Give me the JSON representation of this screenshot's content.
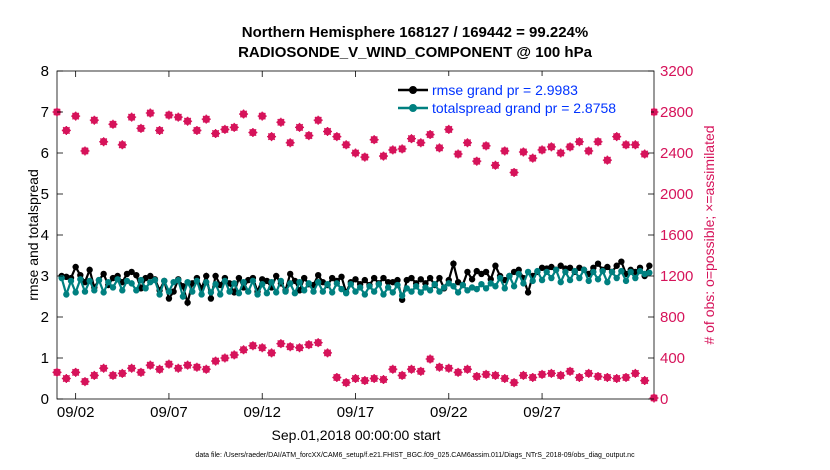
{
  "chart_data": {
    "type": "line",
    "title": "Northern Hemisphere 168127 / 169442 = 99.224%",
    "subtitle": "RADIOSONDE_V_WIND_COMPONENT @ 100 hPa",
    "xlabel": "Sep.01,2018 00:00:00 start",
    "ylabel": "rmse and totalspread",
    "y2label": "# of obs: o=possible; ×=assimilated",
    "x_range": [
      0.0,
      32.0
    ],
    "ylim": [
      0,
      8
    ],
    "y2lim": [
      0,
      3200
    ],
    "x_ticks": [
      1,
      6,
      11,
      16,
      21,
      26
    ],
    "x_tick_labels": [
      "09/02",
      "09/07",
      "09/12",
      "09/17",
      "09/22",
      "09/27"
    ],
    "y_ticks": [
      0,
      1,
      2,
      3,
      4,
      5,
      6,
      7,
      8
    ],
    "y2_ticks": [
      0,
      400,
      800,
      1200,
      1600,
      2000,
      2400,
      2800,
      3200
    ],
    "legend": [
      "rmse grand pr = 2.9983",
      "totalspread grand pr = 2.8758"
    ],
    "legend_position": "top-right",
    "colors": {
      "rmse": "#000000",
      "totalspread": "#008080",
      "obs": "#d6135a",
      "legend_text": "#0033ff"
    },
    "series": [
      {
        "name": "rmse",
        "axis": "left",
        "x": [
          0.25,
          0.5,
          0.75,
          1.0,
          1.25,
          1.5,
          1.75,
          2.0,
          2.25,
          2.5,
          2.75,
          3.0,
          3.25,
          3.5,
          3.75,
          4.0,
          4.25,
          4.5,
          4.75,
          5.0,
          5.25,
          5.5,
          5.75,
          6.0,
          6.25,
          6.5,
          6.75,
          7.0,
          7.25,
          7.5,
          7.75,
          8.0,
          8.25,
          8.5,
          8.75,
          9.0,
          9.25,
          9.5,
          9.75,
          10.0,
          10.25,
          10.5,
          10.75,
          11.0,
          11.25,
          11.5,
          11.75,
          12.0,
          12.25,
          12.5,
          12.75,
          13.0,
          13.25,
          13.5,
          13.75,
          14.0,
          14.25,
          14.5,
          14.75,
          15.0,
          15.25,
          15.5,
          15.75,
          16.0,
          16.25,
          16.5,
          16.75,
          17.0,
          17.25,
          17.5,
          17.75,
          18.0,
          18.25,
          18.5,
          18.75,
          19.0,
          19.25,
          19.5,
          19.75,
          20.0,
          20.25,
          20.5,
          20.75,
          21.0,
          21.25,
          21.5,
          21.75,
          22.0,
          22.25,
          22.5,
          22.75,
          23.0,
          23.25,
          23.5,
          23.75,
          24.0,
          24.25,
          24.5,
          24.75,
          25.0,
          25.25,
          25.5,
          25.75,
          26.0,
          26.25,
          26.5,
          26.75,
          27.0,
          27.25,
          27.5,
          27.75,
          28.0,
          28.25,
          28.5,
          28.75,
          29.0,
          29.25,
          29.5,
          29.75,
          30.0,
          30.25,
          30.5,
          30.75,
          31.0,
          31.25,
          31.5,
          31.75
        ],
        "y": [
          3.0,
          2.98,
          2.95,
          3.22,
          3.02,
          2.85,
          3.15,
          2.72,
          2.9,
          3.05,
          2.78,
          2.95,
          3.0,
          2.85,
          3.05,
          3.1,
          3.02,
          2.7,
          2.95,
          3.0,
          2.92,
          2.65,
          2.88,
          2.45,
          2.62,
          2.92,
          2.75,
          2.35,
          2.82,
          2.95,
          2.7,
          3.0,
          2.45,
          3.0,
          2.78,
          2.95,
          2.82,
          2.6,
          2.95,
          2.72,
          2.9,
          2.95,
          2.62,
          2.92,
          2.88,
          2.72,
          3.0,
          2.82,
          2.65,
          3.05,
          2.88,
          2.65,
          2.95,
          2.8,
          2.78,
          3.02,
          2.85,
          2.78,
          2.95,
          2.88,
          2.98,
          2.6,
          2.85,
          2.92,
          2.8,
          2.9,
          2.78,
          2.95,
          2.82,
          2.95,
          2.85,
          2.85,
          2.9,
          2.42,
          2.9,
          2.95,
          2.82,
          2.92,
          2.82,
          2.95,
          2.78,
          2.95,
          2.7,
          2.9,
          3.3,
          2.85,
          2.78,
          3.1,
          2.92,
          3.12,
          3.05,
          3.1,
          2.92,
          3.25,
          3.0,
          2.9,
          3.0,
          3.1,
          3.15,
          2.95,
          2.6,
          3.0,
          3.1,
          3.2,
          3.18,
          3.22,
          3.15,
          3.25,
          3.18,
          3.2,
          3.1,
          3.2,
          3.15,
          3.05,
          3.2,
          3.3,
          3.15,
          3.22,
          3.1,
          3.25,
          3.35,
          3.05,
          3.15,
          3.1,
          3.2,
          3.0,
          3.25
        ]
      },
      {
        "name": "totalspread",
        "axis": "left",
        "x": [
          0.25,
          0.5,
          0.75,
          1.0,
          1.25,
          1.5,
          1.75,
          2.0,
          2.25,
          2.5,
          2.75,
          3.0,
          3.25,
          3.5,
          3.75,
          4.0,
          4.25,
          4.5,
          4.75,
          5.0,
          5.25,
          5.5,
          5.75,
          6.0,
          6.25,
          6.5,
          6.75,
          7.0,
          7.25,
          7.5,
          7.75,
          8.0,
          8.25,
          8.5,
          8.75,
          9.0,
          9.25,
          9.5,
          9.75,
          10.0,
          10.25,
          10.5,
          10.75,
          11.0,
          11.25,
          11.5,
          11.75,
          12.0,
          12.25,
          12.5,
          12.75,
          13.0,
          13.25,
          13.5,
          13.75,
          14.0,
          14.25,
          14.5,
          14.75,
          15.0,
          15.25,
          15.5,
          15.75,
          16.0,
          16.25,
          16.5,
          16.75,
          17.0,
          17.25,
          17.5,
          17.75,
          18.0,
          18.25,
          18.5,
          18.75,
          19.0,
          19.25,
          19.5,
          19.75,
          20.0,
          20.25,
          20.5,
          20.75,
          21.0,
          21.25,
          21.5,
          21.75,
          22.0,
          22.25,
          22.5,
          22.75,
          23.0,
          23.25,
          23.5,
          23.75,
          24.0,
          24.25,
          24.5,
          24.75,
          25.0,
          25.25,
          25.5,
          25.75,
          26.0,
          26.25,
          26.5,
          26.75,
          27.0,
          27.25,
          27.5,
          27.75,
          28.0,
          28.25,
          28.5,
          28.75,
          29.0,
          29.25,
          29.5,
          29.75,
          30.0,
          30.25,
          30.5,
          30.75,
          31.0,
          31.25,
          31.5,
          31.75
        ],
        "y": [
          2.95,
          2.55,
          2.88,
          2.6,
          2.92,
          2.62,
          2.88,
          2.65,
          2.9,
          2.6,
          2.85,
          2.72,
          2.92,
          2.65,
          2.88,
          2.82,
          2.65,
          2.9,
          2.7,
          2.85,
          2.9,
          2.55,
          2.88,
          2.62,
          2.85,
          2.9,
          2.5,
          2.85,
          2.62,
          2.88,
          2.55,
          2.85,
          2.6,
          2.8,
          2.55,
          2.88,
          2.62,
          2.82,
          2.58,
          2.85,
          2.62,
          2.88,
          2.55,
          2.8,
          2.58,
          2.85,
          2.6,
          2.88,
          2.62,
          2.82,
          2.58,
          2.85,
          2.65,
          2.82,
          2.62,
          2.85,
          2.62,
          2.8,
          2.6,
          2.82,
          2.68,
          2.58,
          2.8,
          2.62,
          2.72,
          2.55,
          2.75,
          2.62,
          2.8,
          2.55,
          2.72,
          2.6,
          2.78,
          2.52,
          2.7,
          2.62,
          2.75,
          2.6,
          2.72,
          2.65,
          2.8,
          2.62,
          2.72,
          2.82,
          2.75,
          2.6,
          2.78,
          2.65,
          2.72,
          2.68,
          2.8,
          2.7,
          2.82,
          2.75,
          2.95,
          2.7,
          3.0,
          2.75,
          3.05,
          2.82,
          3.1,
          2.88,
          3.12,
          2.9,
          3.1,
          2.95,
          3.15,
          2.85,
          3.1,
          2.9,
          3.12,
          2.95,
          3.15,
          2.88,
          3.1,
          2.92,
          3.12,
          2.85,
          3.1,
          2.95,
          3.12,
          2.88,
          3.1,
          2.95,
          3.12,
          3.05,
          3.08
        ]
      },
      {
        "name": "obs possible",
        "axis": "right",
        "x": [
          0.0,
          0.5,
          1.0,
          1.5,
          2.0,
          2.5,
          3.0,
          3.5,
          4.0,
          4.5,
          5.0,
          5.5,
          6.0,
          6.5,
          7.0,
          7.5,
          8.0,
          8.5,
          9.0,
          9.5,
          10.0,
          10.5,
          11.0,
          11.5,
          12.0,
          12.5,
          13.0,
          13.5,
          14.0,
          14.5,
          15.0,
          15.5,
          16.0,
          16.5,
          17.0,
          17.5,
          18.0,
          18.5,
          19.0,
          19.5,
          20.0,
          20.5,
          21.0,
          21.5,
          22.0,
          22.5,
          23.0,
          23.5,
          24.0,
          24.5,
          25.0,
          25.5,
          26.0,
          26.5,
          27.0,
          27.5,
          28.0,
          28.5,
          29.0,
          29.5,
          30.0,
          30.5,
          31.0,
          31.5,
          32.0
        ],
        "y": [
          2800,
          2620,
          2760,
          2420,
          2720,
          2510,
          2680,
          2480,
          2750,
          2640,
          2790,
          2620,
          2770,
          2750,
          2710,
          2620,
          2730,
          2590,
          2630,
          2650,
          2780,
          2600,
          2760,
          2560,
          2700,
          2500,
          2650,
          2570,
          2720,
          2610,
          2560,
          2480,
          2400,
          2360,
          2530,
          2370,
          2430,
          2440,
          2540,
          2500,
          2580,
          2450,
          2630,
          2390,
          2500,
          2320,
          2470,
          2280,
          2420,
          2210,
          2410,
          2350,
          2430,
          2460,
          2400,
          2460,
          2510,
          2420,
          2510,
          2330,
          2560,
          2480,
          2480,
          2390,
          2800
        ]
      },
      {
        "name": "obs assimilated",
        "axis": "right",
        "x": [
          0.0,
          0.5,
          1.0,
          1.5,
          2.0,
          2.5,
          3.0,
          3.5,
          4.0,
          4.5,
          5.0,
          5.5,
          6.0,
          6.5,
          7.0,
          7.5,
          8.0,
          8.5,
          9.0,
          9.5,
          10.0,
          10.5,
          11.0,
          11.5,
          12.0,
          12.5,
          13.0,
          13.5,
          14.0,
          14.5,
          15.0,
          15.5,
          16.0,
          16.5,
          17.0,
          17.5,
          18.0,
          18.5,
          19.0,
          19.5,
          20.0,
          20.5,
          21.0,
          21.5,
          22.0,
          22.5,
          23.0,
          23.5,
          24.0,
          24.5,
          25.0,
          25.5,
          26.0,
          26.5,
          27.0,
          27.5,
          28.0,
          28.5,
          29.0,
          29.5,
          30.0,
          30.5,
          31.0,
          31.5,
          32.0
        ],
        "y": [
          260,
          200,
          260,
          170,
          230,
          300,
          230,
          250,
          300,
          260,
          330,
          290,
          340,
          300,
          330,
          310,
          290,
          370,
          400,
          430,
          480,
          520,
          500,
          450,
          540,
          510,
          500,
          530,
          550,
          450,
          210,
          160,
          200,
          180,
          200,
          190,
          290,
          230,
          290,
          270,
          390,
          310,
          300,
          260,
          290,
          220,
          240,
          230,
          200,
          160,
          230,
          210,
          240,
          250,
          230,
          270,
          210,
          250,
          220,
          210,
          200,
          210,
          250,
          180,
          10
        ]
      }
    ]
  },
  "footer_text": "data file: /Users/raeder/DAI/ATM_forcXX/CAM6_setup/f.e21.FHIST_BGC.f09_025.CAM6assim.011/Diags_NTrS_2018-09/obs_diag_output.nc"
}
